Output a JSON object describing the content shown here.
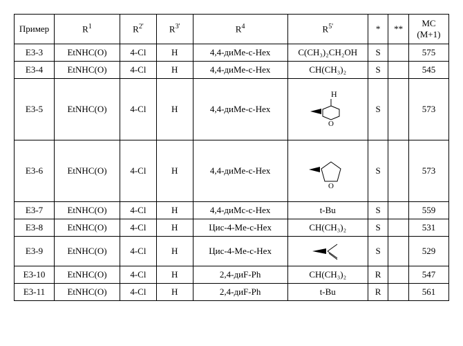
{
  "headers": {
    "primer": "Пример",
    "r1": "R",
    "r2": "R",
    "r3": "R",
    "r4": "R",
    "r5": "R",
    "star": "*",
    "dstar": "**",
    "mc_line1": "МС",
    "mc_line2": "(M+1)"
  },
  "sup": {
    "r1": "1",
    "r2": "2'",
    "r3": "3'",
    "r4": "4",
    "r5": "5'"
  },
  "rows": [
    {
      "primer": "E3-3",
      "r1": "EtNHC(O)",
      "r2": "4-Cl",
      "r3": "H",
      "r4": "4,4-диMe-c-Hex",
      "r5": "C(CH₃)₂CH₂OH",
      "star": "S",
      "dstar": "",
      "mc": "575",
      "tall": false,
      "svg": ""
    },
    {
      "primer": "E3-4",
      "r1": "EtNHC(O)",
      "r2": "4-Cl",
      "r3": "H",
      "r4": "4,4-диMe-c-Hex",
      "r5": "CH(CH₃)₂",
      "star": "S",
      "dstar": "",
      "mc": "545",
      "tall": false,
      "svg": ""
    },
    {
      "primer": "E3-5",
      "r1": "EtNHC(O)",
      "r2": "4-Cl",
      "r3": "H",
      "r4": "4,4-диMe-c-Hex",
      "r5": "",
      "star": "S",
      "dstar": "",
      "mc": "573",
      "tall": true,
      "svg": "thf_h"
    },
    {
      "primer": "E3-6",
      "r1": "EtNHC(O)",
      "r2": "4-Cl",
      "r3": "H",
      "r4": "4,4-диMe-c-Hex",
      "r5": "",
      "star": "S",
      "dstar": "",
      "mc": "573",
      "tall": true,
      "svg": "thf"
    },
    {
      "primer": "E3-7",
      "r1": "EtNHC(O)",
      "r2": "4-Cl",
      "r3": "H",
      "r4": "4,4-диMc-c-Hex",
      "r5": "t-Bu",
      "star": "S",
      "dstar": "",
      "mc": "559",
      "tall": false,
      "svg": ""
    },
    {
      "primer": "E3-8",
      "r1": "EtNHC(O)",
      "r2": "4-Cl",
      "r3": "H",
      "r4": "Цис-4-Me-c-Hex",
      "r5": "CH(CH₃)₂",
      "star": "S",
      "dstar": "",
      "mc": "531",
      "tall": false,
      "svg": ""
    },
    {
      "primer": "E3-9",
      "r1": "EtNHC(O)",
      "r2": "4-Cl",
      "r3": "H",
      "r4": "Цис-4-Me-c-Hex",
      "r5": "",
      "star": "S",
      "dstar": "",
      "mc": "529",
      "tall": false,
      "svg": "isobutenyl"
    },
    {
      "primer": "E3-10",
      "r1": "EtNHC(O)",
      "r2": "4-Cl",
      "r3": "H",
      "r4": "2,4-диF-Ph",
      "r5": "CH(CH₃)₂",
      "star": "R",
      "dstar": "",
      "mc": "547",
      "tall": false,
      "svg": ""
    },
    {
      "primer": "E3-11",
      "r1": "EtNHC(O)",
      "r2": "4-Cl",
      "r3": "H",
      "r4": "2,4-диF-Ph",
      "r5": "t-Bu",
      "star": "R",
      "dstar": "",
      "mc": "561",
      "tall": false,
      "svg": ""
    }
  ],
  "svg_defs": {
    "thf_h": "<svg width='70' height='60'><text x='40' y='12' font-size='12' font-family='Times New Roman'>H</text><line x1='40' y1='15' x2='40' y2='25' stroke='#000' stroke-width='1'/><polygon points='40,25 52,30 52,40 40,45 28,40 28,30' fill='none' stroke='#000' stroke-width='1'/><text x='36' y='54' font-size='11' font-family='Times New Roman'>O</text><polygon points='10,33 26,29 26,37' fill='#000'/></svg>",
    "thf": "<svg width='70' height='50'><polygon points='40,12 54,22 49,40 31,40 26,22' fill='none' stroke='#000' stroke-width='1'/><text x='36' y='50' font-size='11' font-family='Times New Roman'>O</text><polygon points='8,23 24,19 24,27' fill='#000'/></svg>",
    "isobutenyl": "<svg width='60' height='34'><line x1='30' y1='17' x2='44' y2='7' stroke='#000' stroke-width='1'/><line x1='30' y1='17' x2='44' y2='27' stroke='#000' stroke-width='1'/><line x1='32' y1='20' x2='44' y2='29' stroke='#000' stroke-width='1'/><polygon points='8,17 28,13 28,21' fill='#000'/></svg>"
  }
}
